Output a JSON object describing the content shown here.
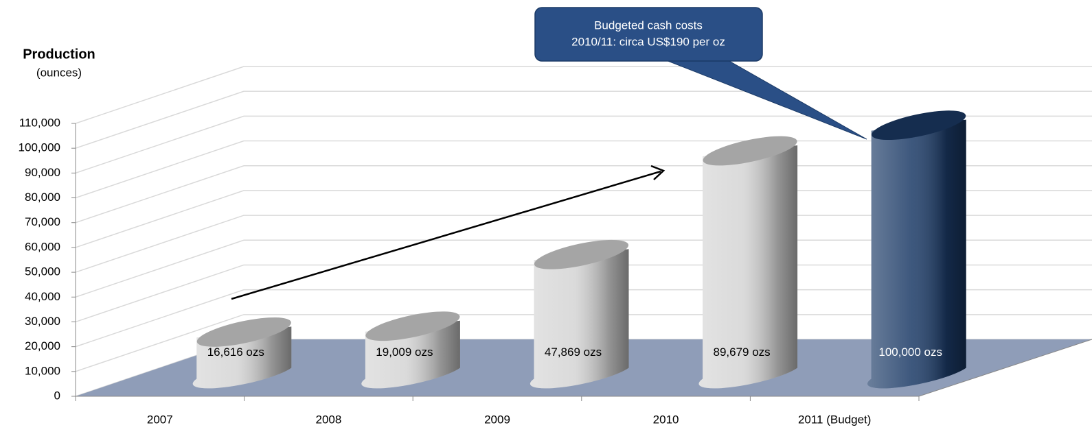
{
  "chart_data": {
    "type": "bar3d",
    "axis_title": "Production",
    "axis_subtitle": "(ounces)",
    "categories": [
      "2007",
      "2008",
      "2009",
      "2010",
      "2011 (Budget)"
    ],
    "values": [
      16616,
      19009,
      47869,
      89679,
      100000
    ],
    "value_labels": [
      "16,616 ozs",
      "19,009 ozs",
      "47,869 ozs",
      "89,679 ozs",
      "100,000 ozs"
    ],
    "colors": [
      "#d4d4d4",
      "#d4d4d4",
      "#d4d4d4",
      "#d4d4d4",
      "#1b3a66"
    ],
    "ylim": [
      0,
      110000
    ],
    "yticks": [
      0,
      {
        "value": 10000,
        "label": "10,000"
      },
      {
        "value": 20000,
        "label": "20,000"
      },
      {
        "value": 30000,
        "label": "30,000"
      },
      {
        "value": 40000,
        "label": "40,000"
      },
      {
        "value": 50000,
        "label": "50,000"
      },
      {
        "value": 60000,
        "label": "60,000"
      },
      {
        "value": 70000,
        "label": "70,000"
      },
      {
        "value": 80000,
        "label": "80,000"
      },
      {
        "value": 90000,
        "label": "90,000"
      },
      {
        "value": 100000,
        "label": "100,000"
      },
      {
        "value": 110000,
        "label": "110,000"
      }
    ],
    "grid": true,
    "callout": [
      "Budgeted cash costs",
      "2010/11: circa US$190 per oz"
    ]
  }
}
